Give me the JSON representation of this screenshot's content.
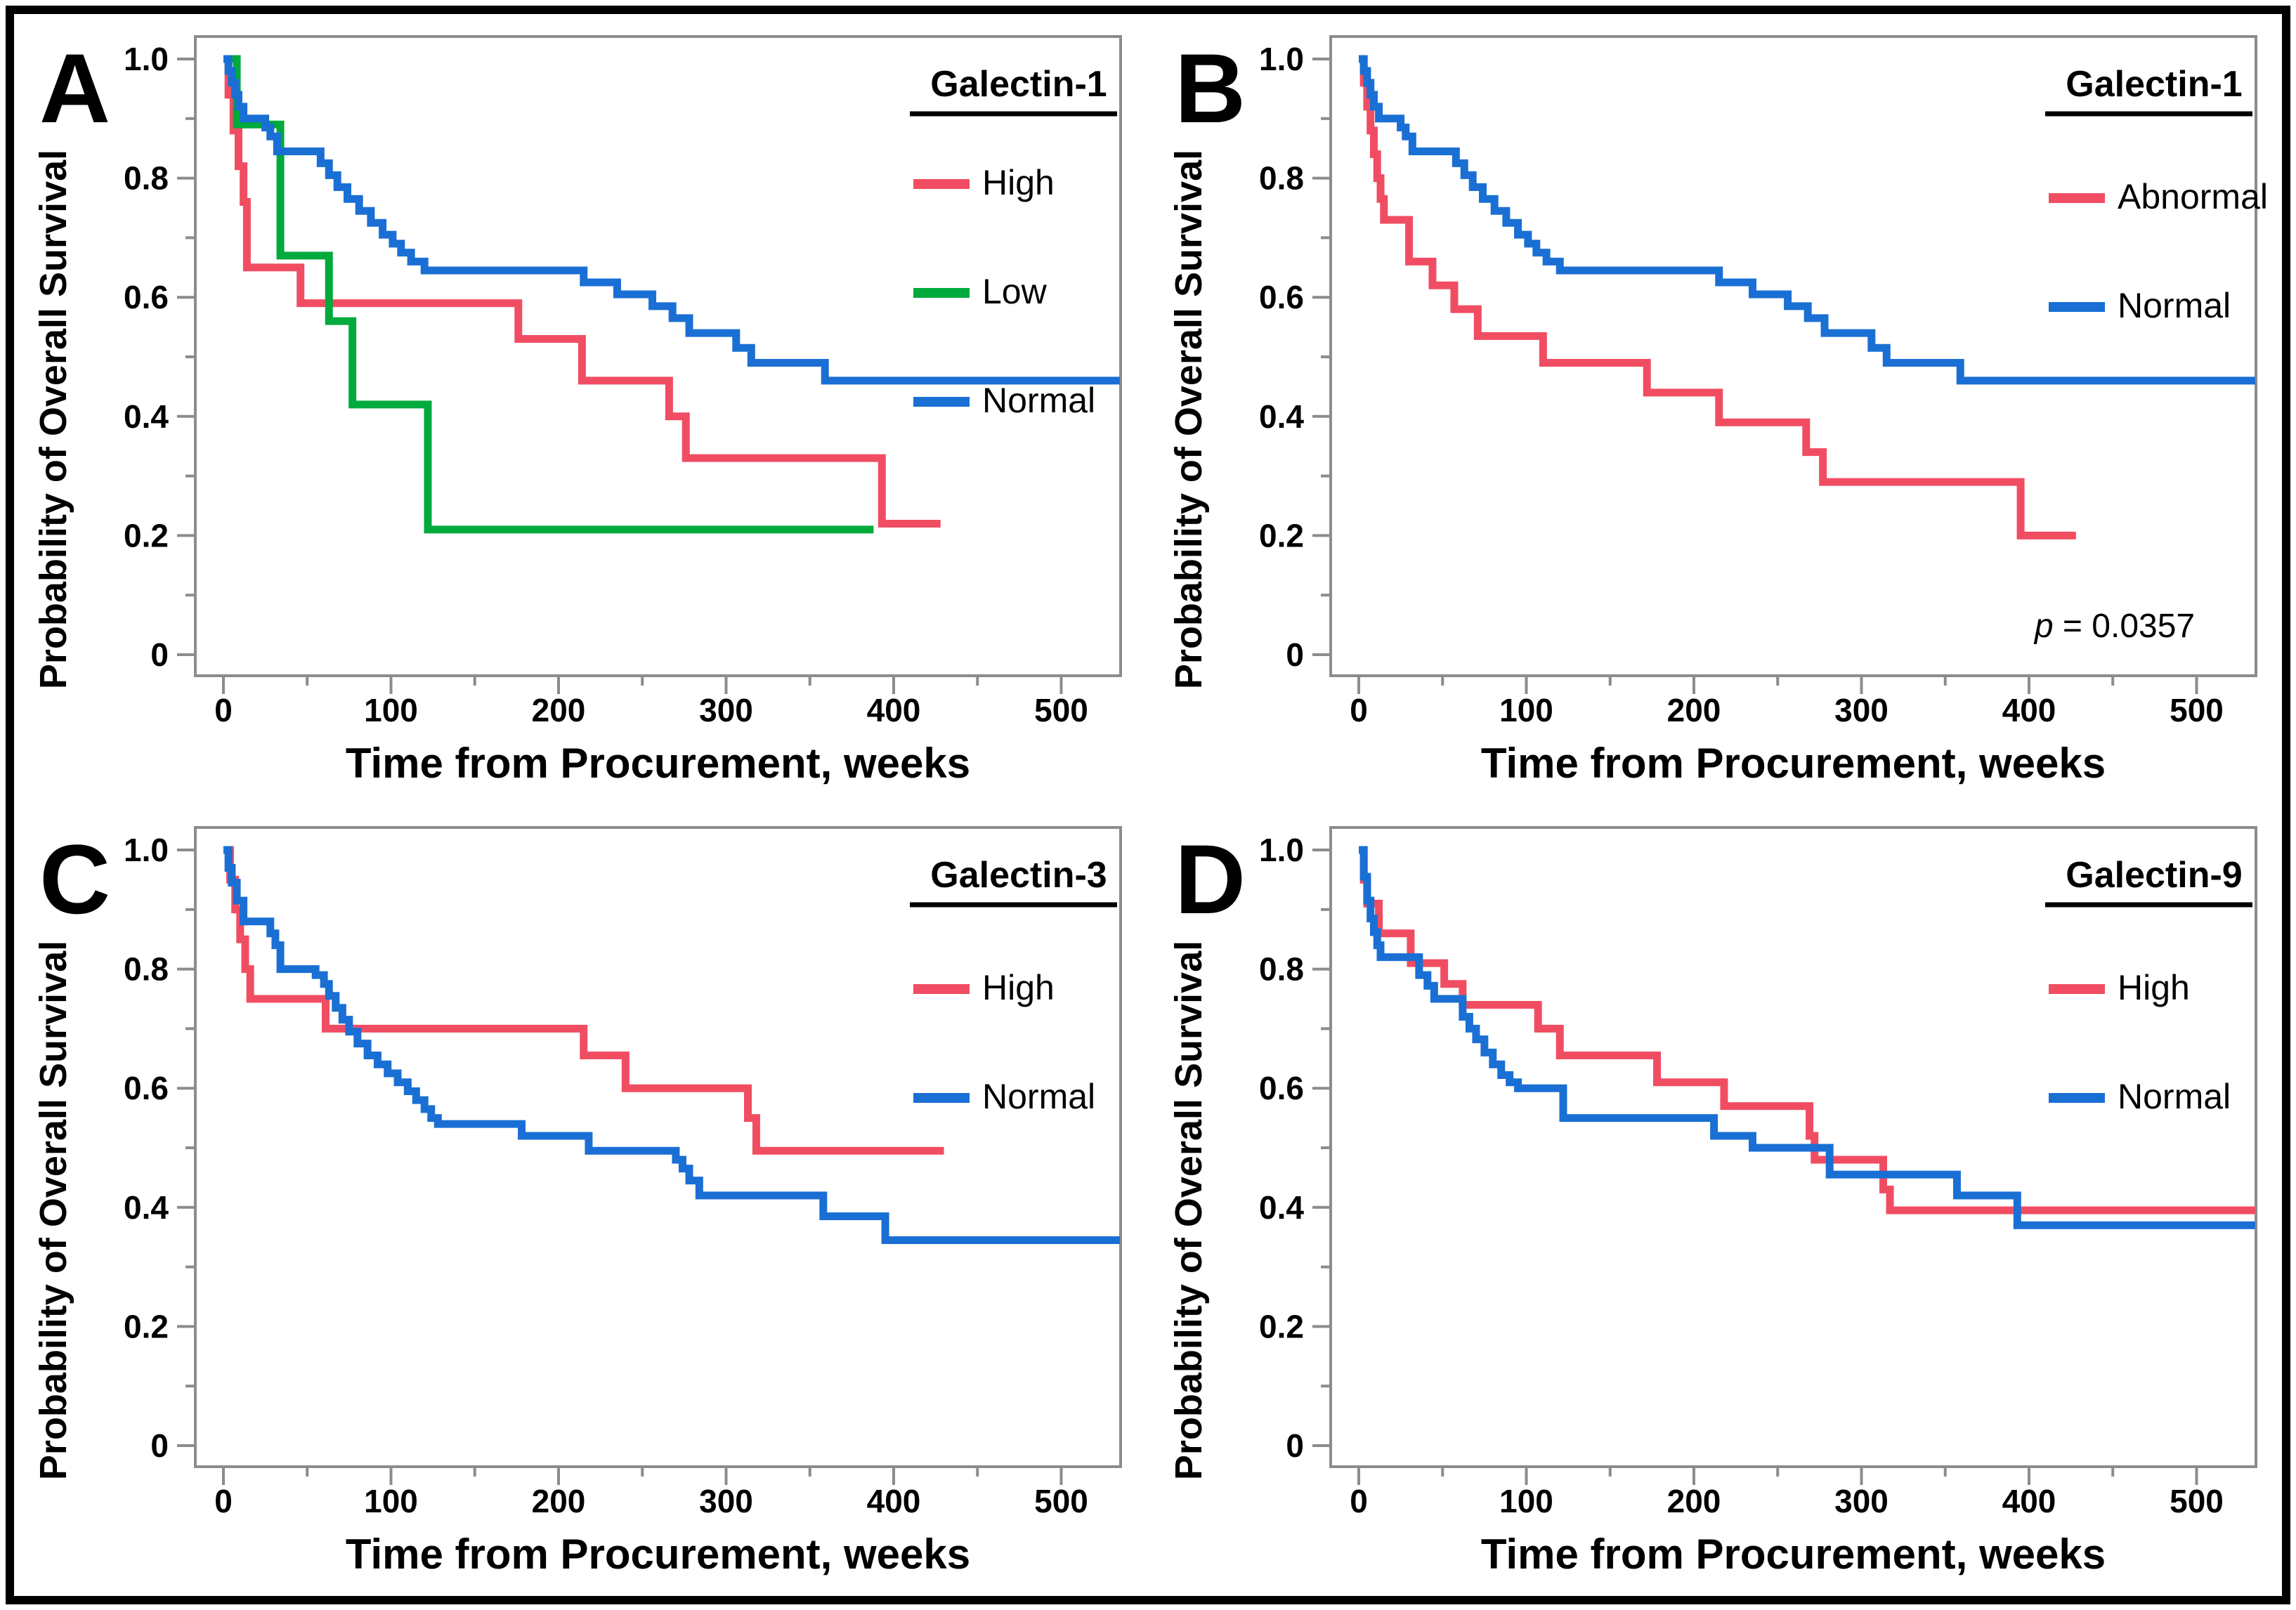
{
  "figure": {
    "background": "#FFFFFF",
    "border_color": "#000000"
  },
  "colors": {
    "red": "#F14D62",
    "green": "#00AA3C",
    "blue": "#1A6FD4",
    "axis_gray": "#8C8C8C",
    "text": "#000000"
  },
  "axes": {
    "xlabel": "Time from Procurement, weeks",
    "ylabel": "Probability of Overall Survival",
    "x_range": [
      -16,
      535
    ],
    "y_range": [
      0,
      1.0
    ],
    "x_major_ticks": [
      0,
      100,
      200,
      300,
      400,
      500
    ],
    "x_minor_ticks": [
      50,
      150,
      250,
      350,
      450
    ],
    "y_major_ticks": [
      {
        "v": 0,
        "label": "0"
      },
      {
        "v": 0.2,
        "label": "0.2"
      },
      {
        "v": 0.4,
        "label": "0.4"
      },
      {
        "v": 0.6,
        "label": "0.6"
      },
      {
        "v": 0.8,
        "label": "0.8"
      },
      {
        "v": 1.0,
        "label": "1.0"
      }
    ],
    "y_minor_ticks": [
      0.1,
      0.3,
      0.5,
      0.7,
      0.9
    ],
    "grid": false
  },
  "chart_data": [
    {
      "type": "km_step_line",
      "panel_letter": "A",
      "legend_title": "Galectin-1",
      "legend_position": "top-right",
      "series": [
        {
          "name": "High",
          "color": "red",
          "steps": [
            [
              0,
              1.0
            ],
            [
              3,
              0.94
            ],
            [
              6,
              0.88
            ],
            [
              9,
              0.82
            ],
            [
              12,
              0.76
            ],
            [
              14,
              0.65
            ],
            [
              46,
              0.59
            ],
            [
              176,
              0.53
            ],
            [
              214,
              0.46
            ],
            [
              266,
              0.4
            ],
            [
              276,
              0.33
            ],
            [
              393,
              0.22
            ],
            [
              428,
              0.22
            ]
          ]
        },
        {
          "name": "Low",
          "color": "green",
          "steps": [
            [
              0,
              1.0
            ],
            [
              8,
              0.89
            ],
            [
              34,
              0.67
            ],
            [
              63,
              0.56
            ],
            [
              77,
              0.42
            ],
            [
              122,
              0.21
            ],
            [
              388,
              0.21
            ]
          ]
        },
        {
          "name": "Normal",
          "color": "blue",
          "steps": [
            [
              0,
              1.0
            ],
            [
              3,
              0.98
            ],
            [
              5,
              0.96
            ],
            [
              7,
              0.94
            ],
            [
              9,
              0.92
            ],
            [
              12,
              0.9
            ],
            [
              25,
              0.885
            ],
            [
              28,
              0.87
            ],
            [
              32,
              0.845
            ],
            [
              58,
              0.825
            ],
            [
              63,
              0.805
            ],
            [
              68,
              0.785
            ],
            [
              74,
              0.765
            ],
            [
              81,
              0.745
            ],
            [
              88,
              0.725
            ],
            [
              95,
              0.705
            ],
            [
              101,
              0.69
            ],
            [
              106,
              0.675
            ],
            [
              112,
              0.66
            ],
            [
              120,
              0.645
            ],
            [
              215,
              0.625
            ],
            [
              235,
              0.605
            ],
            [
              256,
              0.585
            ],
            [
              268,
              0.565
            ],
            [
              278,
              0.54
            ],
            [
              306,
              0.515
            ],
            [
              315,
              0.49
            ],
            [
              359,
              0.46
            ],
            [
              535,
              0.46
            ]
          ]
        }
      ]
    },
    {
      "type": "km_step_line",
      "panel_letter": "B",
      "legend_title": "Galectin-1",
      "legend_position": "top-right",
      "annotation": {
        "italic": "p",
        "rest": " = 0.0357"
      },
      "series": [
        {
          "name": "Abnormal",
          "color": "red",
          "steps": [
            [
              0,
              1.0
            ],
            [
              3,
              0.96
            ],
            [
              5,
              0.92
            ],
            [
              7,
              0.88
            ],
            [
              9,
              0.84
            ],
            [
              11,
              0.8
            ],
            [
              13,
              0.765
            ],
            [
              15,
              0.73
            ],
            [
              30,
              0.66
            ],
            [
              44,
              0.62
            ],
            [
              57,
              0.58
            ],
            [
              71,
              0.535
            ],
            [
              110,
              0.49
            ],
            [
              172,
              0.44
            ],
            [
              215,
              0.39
            ],
            [
              267,
              0.34
            ],
            [
              277,
              0.29
            ],
            [
              395,
              0.2
            ],
            [
              428,
              0.2
            ]
          ]
        },
        {
          "name": "Normal",
          "color": "blue",
          "steps": [
            [
              0,
              1.0
            ],
            [
              3,
              0.98
            ],
            [
              5,
              0.96
            ],
            [
              7,
              0.94
            ],
            [
              9,
              0.92
            ],
            [
              12,
              0.9
            ],
            [
              25,
              0.885
            ],
            [
              28,
              0.87
            ],
            [
              32,
              0.845
            ],
            [
              58,
              0.825
            ],
            [
              63,
              0.805
            ],
            [
              68,
              0.785
            ],
            [
              74,
              0.765
            ],
            [
              81,
              0.745
            ],
            [
              88,
              0.725
            ],
            [
              95,
              0.705
            ],
            [
              101,
              0.69
            ],
            [
              106,
              0.675
            ],
            [
              112,
              0.66
            ],
            [
              120,
              0.645
            ],
            [
              215,
              0.625
            ],
            [
              235,
              0.605
            ],
            [
              256,
              0.585
            ],
            [
              268,
              0.565
            ],
            [
              278,
              0.54
            ],
            [
              306,
              0.515
            ],
            [
              315,
              0.49
            ],
            [
              359,
              0.46
            ],
            [
              535,
              0.46
            ]
          ]
        }
      ]
    },
    {
      "type": "km_step_line",
      "panel_letter": "C",
      "legend_title": "Galectin-3",
      "legend_position": "top-right",
      "series": [
        {
          "name": "High",
          "color": "red",
          "steps": [
            [
              0,
              1.0
            ],
            [
              4,
              0.95
            ],
            [
              7,
              0.9
            ],
            [
              10,
              0.85
            ],
            [
              13,
              0.8
            ],
            [
              16,
              0.75
            ],
            [
              61,
              0.7
            ],
            [
              215,
              0.655
            ],
            [
              240,
              0.6
            ],
            [
              313,
              0.55
            ],
            [
              318,
              0.495
            ],
            [
              430,
              0.495
            ]
          ]
        },
        {
          "name": "Normal",
          "color": "blue",
          "steps": [
            [
              0,
              1.0
            ],
            [
              3,
              0.97
            ],
            [
              5,
              0.945
            ],
            [
              8,
              0.915
            ],
            [
              12,
              0.88
            ],
            [
              28,
              0.86
            ],
            [
              31,
              0.84
            ],
            [
              34,
              0.8
            ],
            [
              55,
              0.79
            ],
            [
              60,
              0.775
            ],
            [
              63,
              0.755
            ],
            [
              67,
              0.735
            ],
            [
              71,
              0.715
            ],
            [
              75,
              0.695
            ],
            [
              80,
              0.675
            ],
            [
              86,
              0.655
            ],
            [
              92,
              0.64
            ],
            [
              98,
              0.625
            ],
            [
              104,
              0.61
            ],
            [
              110,
              0.595
            ],
            [
              115,
              0.58
            ],
            [
              120,
              0.565
            ],
            [
              124,
              0.55
            ],
            [
              128,
              0.54
            ],
            [
              178,
              0.52
            ],
            [
              218,
              0.495
            ],
            [
              270,
              0.48
            ],
            [
              274,
              0.465
            ],
            [
              278,
              0.445
            ],
            [
              284,
              0.42
            ],
            [
              358,
              0.385
            ],
            [
              395,
              0.345
            ],
            [
              535,
              0.345
            ]
          ]
        }
      ]
    },
    {
      "type": "km_step_line",
      "panel_letter": "D",
      "legend_title": "Galectin-9",
      "legend_position": "top-right",
      "series": [
        {
          "name": "High",
          "color": "red",
          "steps": [
            [
              0,
              1.0
            ],
            [
              3,
              0.95
            ],
            [
              5,
              0.91
            ],
            [
              12,
              0.86
            ],
            [
              31,
              0.81
            ],
            [
              51,
              0.775
            ],
            [
              62,
              0.74
            ],
            [
              107,
              0.7
            ],
            [
              120,
              0.655
            ],
            [
              178,
              0.61
            ],
            [
              218,
              0.57
            ],
            [
              269,
              0.52
            ],
            [
              272,
              0.48
            ],
            [
              313,
              0.43
            ],
            [
              317,
              0.395
            ],
            [
              535,
              0.395
            ]
          ]
        },
        {
          "name": "Normal",
          "color": "blue",
          "steps": [
            [
              0,
              1.0
            ],
            [
              3,
              0.955
            ],
            [
              5,
              0.915
            ],
            [
              7,
              0.885
            ],
            [
              9,
              0.862
            ],
            [
              11,
              0.84
            ],
            [
              13,
              0.82
            ],
            [
              36,
              0.79
            ],
            [
              41,
              0.772
            ],
            [
              45,
              0.75
            ],
            [
              62,
              0.72
            ],
            [
              66,
              0.7
            ],
            [
              70,
              0.682
            ],
            [
              75,
              0.66
            ],
            [
              80,
              0.64
            ],
            [
              85,
              0.622
            ],
            [
              90,
              0.61
            ],
            [
              95,
              0.6
            ],
            [
              122,
              0.55
            ],
            [
              212,
              0.52
            ],
            [
              235,
              0.5
            ],
            [
              281,
              0.455
            ],
            [
              357,
              0.42
            ],
            [
              393,
              0.37
            ],
            [
              535,
              0.37
            ]
          ]
        }
      ]
    }
  ]
}
